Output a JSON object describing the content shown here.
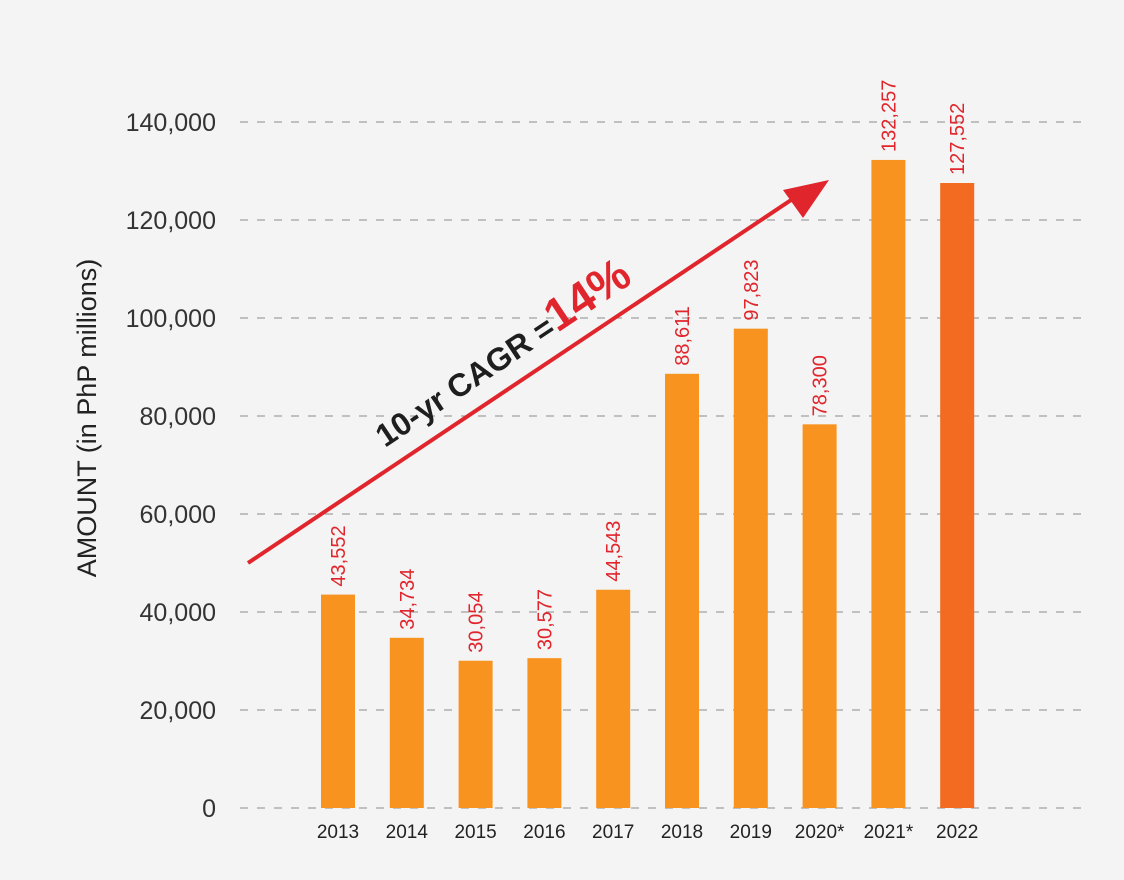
{
  "chart_data": {
    "type": "bar",
    "title": "",
    "xlabel": "",
    "ylabel": "AMOUNT (in PhP millions)",
    "ylim": [
      0,
      140000
    ],
    "yticks": [
      0,
      20000,
      40000,
      60000,
      80000,
      100000,
      120000,
      140000
    ],
    "ytick_labels": [
      "0",
      "20,000",
      "40,000",
      "60,000",
      "80,000",
      "100,000",
      "120,000",
      "140,000"
    ],
    "grid": "horizontal-dashed",
    "categories": [
      "2013",
      "2014",
      "2015",
      "2016",
      "2017",
      "2018",
      "2019",
      "2020*",
      "2021*",
      "2022"
    ],
    "values": [
      43552,
      34734,
      30054,
      30577,
      44543,
      88611,
      97823,
      78300,
      132257,
      127552
    ],
    "value_labels": [
      "43,552",
      "34,734",
      "30,054",
      "30,577",
      "44,543",
      "88,611",
      "97,823",
      "78,300",
      "132,257",
      "127,552"
    ],
    "bar_color": "#f7931e",
    "highlight_color": "#f26b21",
    "highlight_index": 9,
    "label_color": "#e0262c",
    "annotation": {
      "text": "10-yr CAGR =",
      "value": "14%",
      "arrow_color": "#e0262c"
    }
  }
}
